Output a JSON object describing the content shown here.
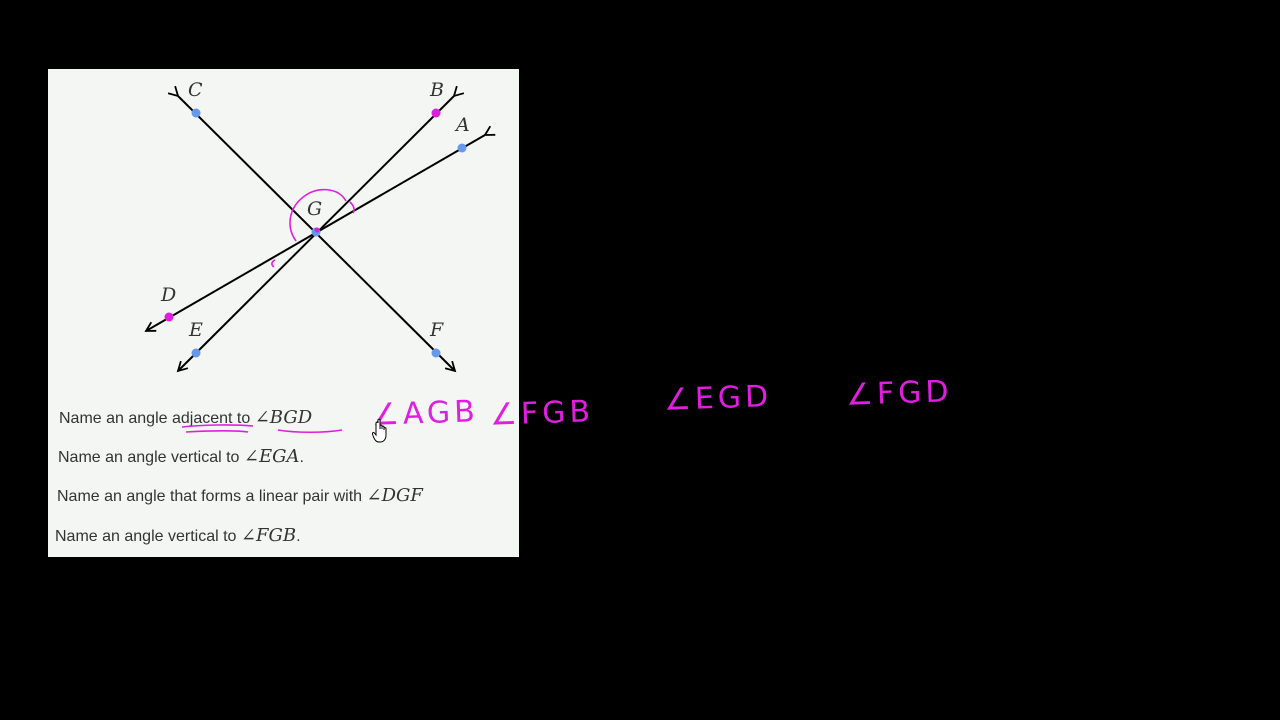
{
  "diagram": {
    "points": {
      "A": "A",
      "B": "B",
      "C": "C",
      "D": "D",
      "E": "E",
      "F": "F",
      "G": "G"
    },
    "colors": {
      "line": "#000000",
      "blue_point": "#6699ee",
      "magenta_point": "#e01ee0",
      "annotation": "#e01ee0",
      "panel_background": "#f4f6f4"
    }
  },
  "questions": [
    {
      "prefix": "Name an angle ",
      "underlined": "adjacent",
      "middle": " to ",
      "angle": "∠BGD",
      "suffix": ""
    },
    {
      "prefix": "Name an angle vertical to ",
      "underlined": "",
      "middle": "",
      "angle": "∠EGA",
      "suffix": "."
    },
    {
      "prefix": "Name an angle that forms a linear pair with ",
      "underlined": "",
      "middle": "",
      "angle": "∠DGF",
      "suffix": ""
    },
    {
      "prefix": "Name an angle vertical to ",
      "underlined": "",
      "middle": "",
      "angle": "∠FGB",
      "suffix": "."
    }
  ],
  "handwritten_answers": [
    "∠AGB",
    "∠FGB",
    "∠EGD",
    "∠FGD"
  ],
  "cursor": {
    "icon": "hand-pointer-icon"
  }
}
